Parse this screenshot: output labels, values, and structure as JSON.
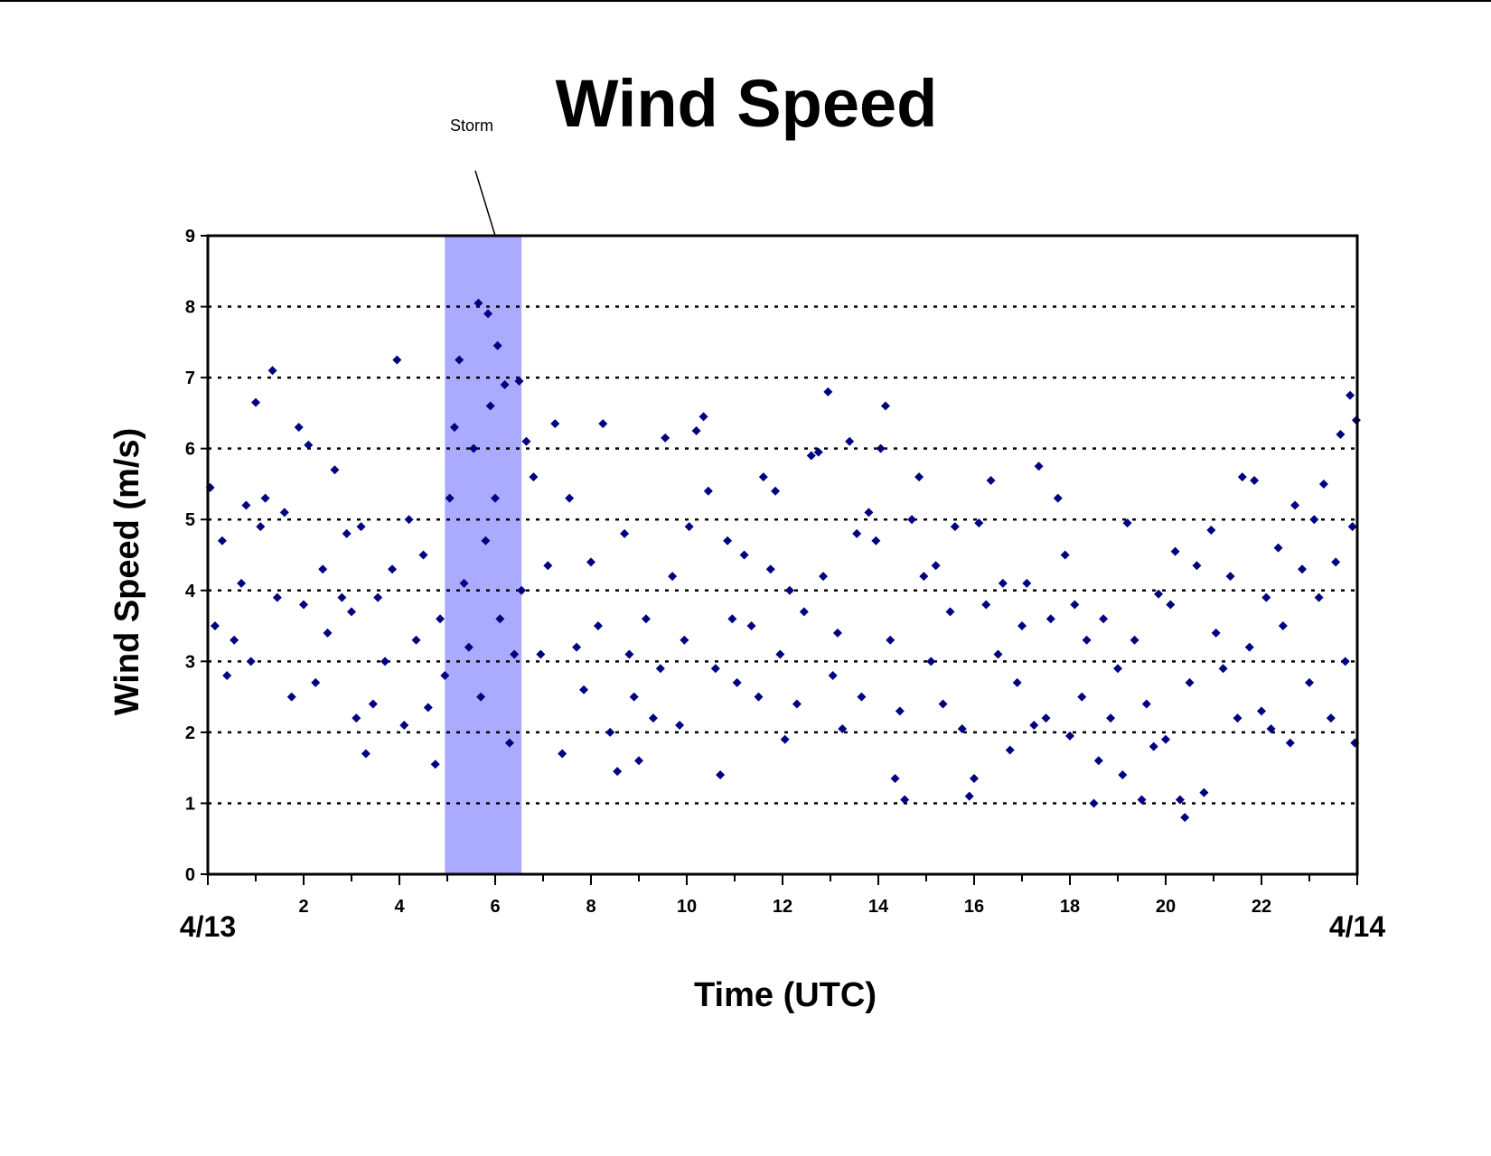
{
  "chart_data": {
    "type": "scatter",
    "title": "Wind Speed",
    "x_label": "Time (UTC)",
    "y_label": "Wind Speed (m/s)",
    "color": "#000080",
    "marker": "diamond",
    "grid": true,
    "xlim": [
      0,
      24
    ],
    "ylim": [
      0,
      9
    ],
    "xticks": [
      {
        "value": 0,
        "label": "4/13"
      },
      2,
      4,
      6,
      8,
      10,
      12,
      14,
      16,
      18,
      20,
      22,
      {
        "value": 24,
        "label": "4/14"
      }
    ],
    "yticks": [
      0,
      1,
      2,
      3,
      4,
      5,
      6,
      7,
      8,
      9
    ],
    "highlight": {
      "x": [
        4.95,
        6.55
      ],
      "color": "#aaaaff"
    },
    "annotations": [
      {
        "text": "Storm",
        "x": 6
      }
    ],
    "x": [
      0.05,
      0.15,
      0.3,
      0.4,
      0.55,
      0.7,
      0.8,
      0.9,
      1.0,
      1.1,
      1.2,
      1.35,
      1.45,
      1.6,
      1.75,
      1.9,
      2.0,
      2.1,
      2.25,
      2.4,
      2.5,
      2.65,
      2.8,
      2.9,
      3.0,
      3.1,
      3.2,
      3.3,
      3.45,
      3.55,
      3.7,
      3.85,
      3.95,
      4.1,
      4.2,
      4.35,
      4.5,
      4.6,
      4.75,
      4.85,
      4.95,
      5.05,
      5.15,
      5.25,
      5.35,
      5.45,
      5.55,
      5.65,
      5.7,
      5.8,
      5.85,
      5.9,
      6.0,
      6.05,
      6.1,
      6.2,
      6.3,
      6.4,
      6.5,
      6.55,
      6.65,
      6.8,
      6.95,
      7.1,
      7.25,
      7.4,
      7.55,
      7.7,
      7.85,
      8.0,
      8.15,
      8.25,
      8.4,
      8.55,
      8.7,
      8.8,
      8.9,
      9.0,
      9.15,
      9.3,
      9.45,
      9.55,
      9.7,
      9.85,
      9.95,
      10.05,
      10.2,
      10.35,
      10.45,
      10.6,
      10.7,
      10.85,
      10.95,
      11.05,
      11.2,
      11.35,
      11.5,
      11.6,
      11.75,
      11.85,
      11.95,
      12.05,
      12.15,
      12.3,
      12.45,
      12.6,
      12.75,
      12.85,
      12.95,
      13.05,
      13.15,
      13.25,
      13.4,
      13.55,
      13.65,
      13.8,
      13.95,
      14.05,
      14.15,
      14.25,
      14.35,
      14.45,
      14.55,
      14.7,
      14.85,
      14.95,
      15.1,
      15.2,
      15.35,
      15.5,
      15.6,
      15.75,
      15.9,
      16.0,
      16.1,
      16.25,
      16.35,
      16.5,
      16.6,
      16.75,
      16.9,
      17.0,
      17.1,
      17.25,
      17.35,
      17.5,
      17.6,
      17.75,
      17.9,
      18.0,
      18.1,
      18.25,
      18.35,
      18.5,
      18.6,
      18.7,
      18.85,
      19.0,
      19.1,
      19.2,
      19.35,
      19.5,
      19.6,
      19.75,
      19.85,
      20.0,
      20.1,
      20.2,
      20.3,
      20.4,
      20.5,
      20.65,
      20.8,
      20.95,
      21.05,
      21.2,
      21.35,
      21.5,
      21.6,
      21.75,
      21.85,
      22.0,
      22.1,
      22.2,
      22.35,
      22.45,
      22.6,
      22.7,
      22.85,
      23.0,
      23.1,
      23.2,
      23.3,
      23.45,
      23.55,
      23.65,
      23.75,
      23.85,
      23.95,
      23.98,
      23.9
    ],
    "values": [
      5.45,
      3.5,
      4.7,
      2.8,
      3.3,
      4.1,
      5.2,
      3.0,
      6.65,
      4.9,
      5.3,
      7.1,
      3.9,
      5.1,
      2.5,
      6.3,
      3.8,
      6.05,
      2.7,
      4.3,
      3.4,
      5.7,
      3.9,
      4.8,
      3.7,
      2.2,
      4.9,
      1.7,
      2.4,
      3.9,
      3.0,
      4.3,
      7.25,
      2.1,
      5.0,
      3.3,
      4.5,
      2.35,
      1.55,
      3.6,
      2.8,
      5.3,
      6.3,
      7.25,
      4.1,
      3.2,
      6.0,
      8.05,
      2.5,
      4.7,
      7.9,
      6.6,
      5.3,
      7.45,
      3.6,
      6.9,
      1.85,
      3.1,
      6.95,
      4.0,
      6.1,
      5.6,
      3.1,
      4.35,
      6.35,
      1.7,
      5.3,
      3.2,
      2.6,
      4.4,
      3.5,
      6.35,
      2.0,
      1.45,
      4.8,
      3.1,
      2.5,
      1.6,
      3.6,
      2.2,
      2.9,
      6.15,
      4.2,
      2.1,
      3.3,
      4.9,
      6.25,
      6.45,
      5.4,
      2.9,
      1.4,
      4.7,
      3.6,
      2.7,
      4.5,
      3.5,
      2.5,
      5.6,
      4.3,
      5.4,
      3.1,
      1.9,
      4.0,
      2.4,
      3.7,
      5.9,
      5.95,
      4.2,
      6.8,
      2.8,
      3.4,
      2.05,
      6.1,
      4.8,
      2.5,
      5.1,
      4.7,
      6.0,
      6.6,
      3.3,
      1.35,
      2.3,
      1.05,
      5.0,
      5.6,
      4.2,
      3.0,
      4.35,
      2.4,
      3.7,
      4.9,
      2.05,
      1.1,
      1.35,
      4.95,
      3.8,
      5.55,
      3.1,
      4.1,
      1.75,
      2.7,
      3.5,
      4.1,
      2.1,
      5.75,
      2.2,
      3.6,
      5.3,
      4.5,
      1.95,
      3.8,
      2.5,
      3.3,
      1.0,
      1.6,
      3.6,
      2.2,
      2.9,
      1.4,
      4.95,
      3.3,
      1.05,
      2.4,
      1.8,
      3.95,
      1.9,
      3.8,
      4.55,
      1.05,
      0.8,
      2.7,
      4.35,
      1.15,
      4.85,
      3.4,
      2.9,
      4.2,
      2.2,
      5.6,
      3.2,
      5.55,
      2.3,
      3.9,
      2.05,
      4.6,
      3.5,
      1.85,
      5.2,
      4.3,
      2.7,
      5.0,
      3.9,
      5.5,
      2.2,
      4.4,
      6.2,
      3.0,
      6.75,
      1.85,
      6.4,
      4.9
    ]
  }
}
